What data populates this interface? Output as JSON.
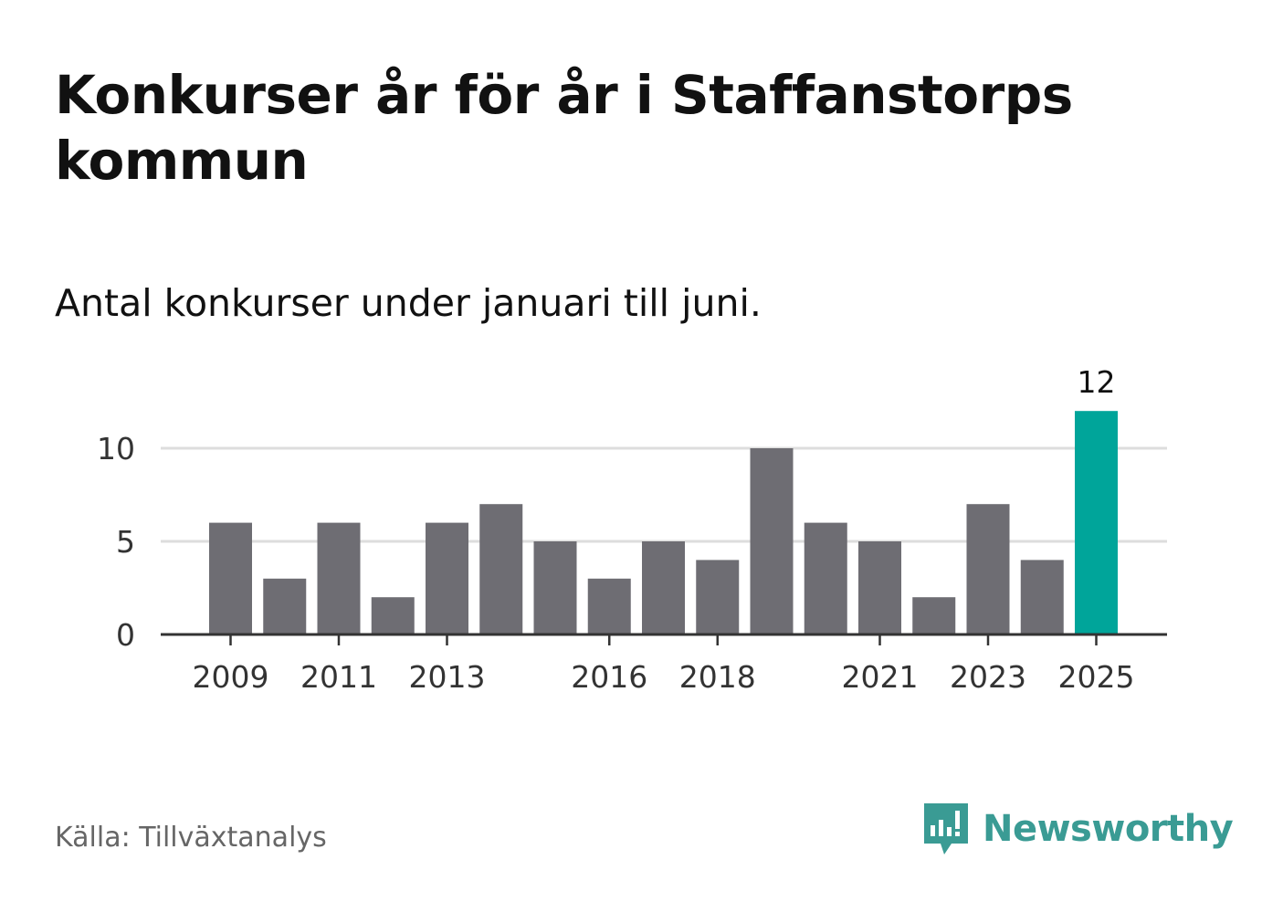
{
  "title": "Konkurser år för år i Staffanstorps kommun",
  "subtitle": "Antal konkurser under januari till juni.",
  "source": "Källa: Tillväxtanalys",
  "brand": {
    "name": "Newsworthy",
    "color": "#3a9b94",
    "icon": "newsworthy-logo-icon"
  },
  "chart_data": {
    "type": "bar",
    "categories": [
      "2009",
      "2010",
      "2011",
      "2012",
      "2013",
      "2014",
      "2015",
      "2016",
      "2017",
      "2018",
      "2019",
      "2020",
      "2021",
      "2022",
      "2023",
      "2024",
      "2025"
    ],
    "values": [
      6,
      3,
      6,
      2,
      6,
      7,
      5,
      3,
      5,
      4,
      10,
      6,
      5,
      2,
      7,
      4,
      12
    ],
    "x_tick_labels": [
      "2009",
      "2011",
      "2013",
      "2016",
      "2018",
      "2021",
      "2023",
      "2025"
    ],
    "y_ticks": [
      0,
      5,
      10
    ],
    "ylim": [
      0,
      12
    ],
    "grid": true,
    "colors": {
      "default": "#6e6d73",
      "highlight": "#00a59a"
    },
    "highlight": {
      "category": "2025",
      "label": "12"
    }
  }
}
